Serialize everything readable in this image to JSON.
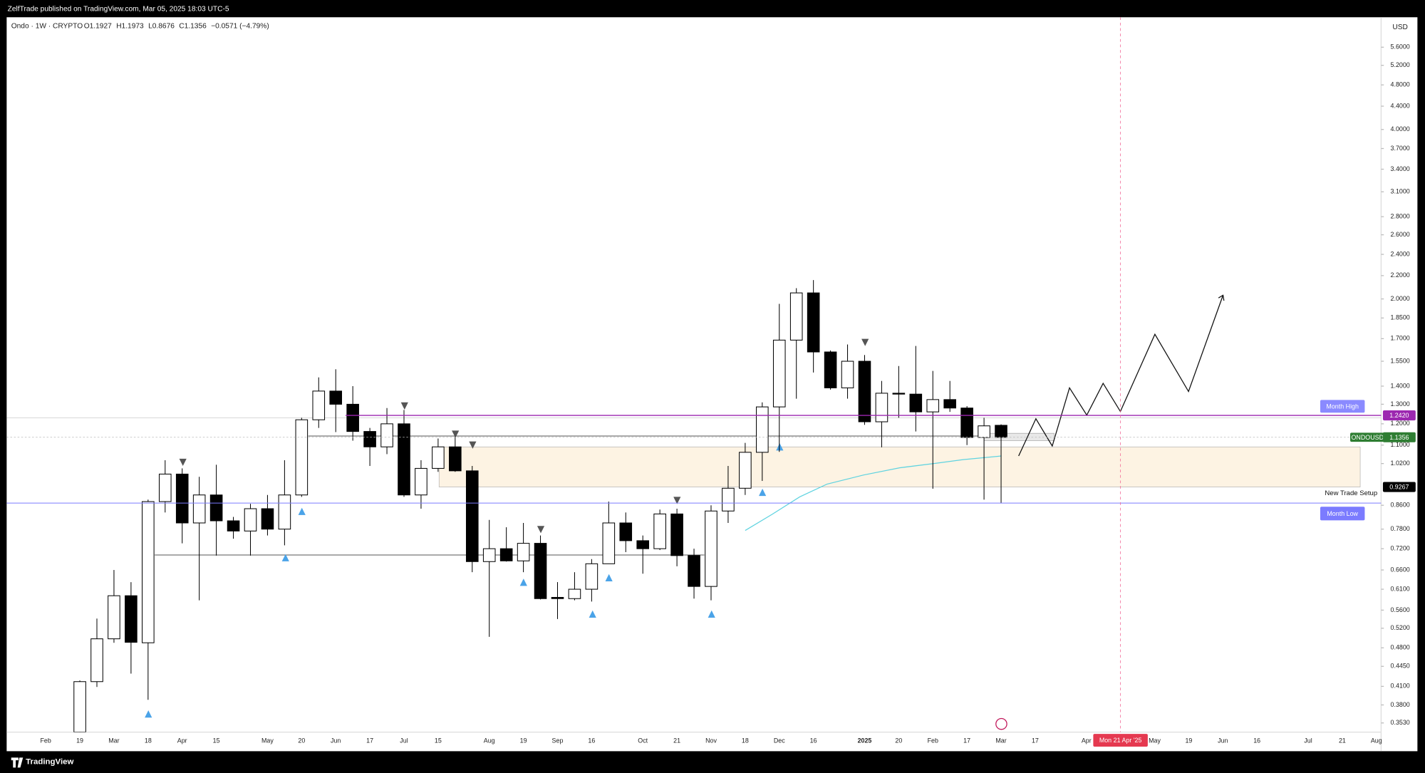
{
  "header": {
    "publisher": "ZelfTrade published on TradingView.com, Mar 05, 2025 18:03 UTC-5"
  },
  "footer": {
    "brand": "TradingView"
  },
  "chart_data": {
    "type": "candlestick",
    "symbol": "Ondo · 1W · CRYPTO",
    "ohlc_header": [
      "O1.1927",
      "H1.1973",
      "L0.8676",
      "C1.1356",
      "−0.0571 (−4.79%)"
    ],
    "currency": "USD",
    "crosshair_label": "Mon 21 Apr '25",
    "categories": [
      "Feb",
      null,
      "19",
      null,
      "Mar",
      null,
      "18",
      null,
      "Apr",
      null,
      "15",
      null,
      null,
      "May",
      null,
      "20",
      null,
      "Jun",
      null,
      "17",
      null,
      "Jul",
      null,
      "15",
      null,
      null,
      "Aug",
      null,
      "19",
      null,
      "Sep",
      null,
      "16",
      null,
      null,
      "Oct",
      null,
      "21",
      null,
      "Nov",
      null,
      "18",
      null,
      "Dec",
      null,
      "16",
      null,
      null,
      "2025",
      null,
      "20",
      null,
      "Feb",
      null,
      "17",
      null,
      "Mar",
      null,
      "17",
      null,
      null,
      "Apr",
      null,
      null,
      null,
      "May",
      null,
      "19",
      null,
      "Jun",
      null,
      "16",
      null,
      null,
      "Jul",
      null,
      "21",
      null,
      "Aug"
    ],
    "open": [
      null,
      null,
      0.34,
      0.418,
      0.498,
      0.594,
      0.49,
      0.873,
      0.977,
      0.8,
      0.897,
      0.807,
      0.774,
      0.848,
      0.78,
      0.897,
      1.22,
      1.372,
      1.3,
      1.163,
      1.092,
      1.2,
      0.897,
      1.0,
      1.092,
      0.99,
      0.683,
      0.72,
      0.685,
      0.736,
      0.59,
      0.587,
      0.61,
      0.677,
      0.8,
      0.744,
      0.72,
      0.83,
      0.7,
      0.617,
      0.84,
      0.922,
      1.068,
      1.286,
      1.69,
      2.05,
      1.61,
      1.39,
      1.55,
      1.21,
      1.36,
      1.355,
      1.26,
      1.325,
      1.28,
      1.135,
      1.1927,
      null,
      null,
      null,
      null,
      null,
      null,
      null,
      null,
      null,
      null,
      null,
      null,
      null,
      null,
      null,
      null,
      null,
      null,
      null,
      null,
      null,
      null
    ],
    "high": [
      null,
      null,
      0.42,
      0.541,
      0.66,
      0.628,
      0.88,
      1.034,
      1.0,
      0.966,
      1.015,
      0.82,
      0.865,
      0.897,
      1.034,
      1.23,
      1.451,
      1.5,
      1.4,
      1.18,
      1.28,
      1.27,
      1.034,
      1.13,
      1.14,
      1.01,
      0.81,
      0.786,
      0.8,
      0.76,
      0.628,
      0.654,
      0.69,
      0.873,
      0.835,
      0.76,
      0.845,
      0.848,
      0.72,
      0.86,
      1.01,
      1.11,
      1.31,
      1.96,
      2.09,
      2.16,
      1.62,
      1.66,
      1.59,
      1.43,
      1.52,
      1.65,
      1.49,
      1.43,
      1.29,
      1.23,
      1.1973,
      null,
      null,
      null,
      null,
      null,
      null,
      null,
      null,
      null,
      null,
      null,
      null,
      null,
      null,
      null,
      null,
      null,
      null,
      null,
      null,
      null,
      null
    ],
    "low": [
      null,
      null,
      0.33,
      0.409,
      0.49,
      0.432,
      0.388,
      0.835,
      0.736,
      0.583,
      0.7,
      0.75,
      0.7,
      0.76,
      0.73,
      0.89,
      1.18,
      1.16,
      1.12,
      1.01,
      1.06,
      0.89,
      0.848,
      0.986,
      0.986,
      0.654,
      0.502,
      0.683,
      0.654,
      0.585,
      0.54,
      0.583,
      0.58,
      0.677,
      0.71,
      0.65,
      0.716,
      0.67,
      0.587,
      0.583,
      0.8,
      0.897,
      0.95,
      1.07,
      1.33,
      1.48,
      1.38,
      1.33,
      1.195,
      1.09,
      1.23,
      1.163,
      0.92,
      1.26,
      1.1,
      0.88,
      0.8676,
      null,
      null,
      null,
      null,
      null,
      null,
      null,
      null,
      null,
      null,
      null,
      null,
      null,
      null,
      null,
      null,
      null,
      null,
      null,
      null,
      null,
      null
    ],
    "close": [
      null,
      null,
      0.418,
      0.498,
      0.594,
      0.491,
      0.873,
      0.977,
      0.8,
      0.897,
      0.807,
      0.774,
      0.848,
      0.78,
      0.897,
      1.22,
      1.372,
      1.3,
      1.163,
      1.092,
      1.2,
      0.897,
      1.0,
      1.092,
      0.99,
      0.683,
      0.72,
      0.685,
      0.736,
      0.587,
      0.587,
      0.61,
      0.677,
      0.8,
      0.744,
      0.72,
      0.83,
      0.7,
      0.617,
      0.84,
      0.922,
      1.068,
      1.286,
      1.69,
      2.05,
      1.61,
      1.39,
      1.55,
      1.21,
      1.36,
      1.355,
      1.26,
      1.325,
      1.28,
      1.135,
      1.19,
      1.1356,
      null,
      null,
      null,
      null,
      null,
      null,
      null,
      null,
      null,
      null,
      null,
      null,
      null,
      null,
      null,
      null,
      null,
      null,
      null,
      null,
      null,
      null
    ],
    "up_color": "#ffffff",
    "down_color": "#000000",
    "wick_color": "#000000",
    "log_scale": true,
    "ylim": [
      0.34,
      6.33
    ],
    "yticks": [
      {
        "value": 5.6,
        "label": "5.6000"
      },
      {
        "value": 5.2,
        "label": "5.2000"
      },
      {
        "value": 4.8,
        "label": "4.8000"
      },
      {
        "value": 4.4,
        "label": "4.4000"
      },
      {
        "value": 4.0,
        "label": "4.0000"
      },
      {
        "value": 3.7,
        "label": "3.7000"
      },
      {
        "value": 3.4,
        "label": "3.4000"
      },
      {
        "value": 3.1,
        "label": "3.1000"
      },
      {
        "value": 2.8,
        "label": "2.8000"
      },
      {
        "value": 2.6,
        "label": "2.6000"
      },
      {
        "value": 2.4,
        "label": "2.4000"
      },
      {
        "value": 2.2,
        "label": "2.2000"
      },
      {
        "value": 2.0,
        "label": "2.0000"
      },
      {
        "value": 1.85,
        "label": "1.8500"
      },
      {
        "value": 1.7,
        "label": "1.7000"
      },
      {
        "value": 1.55,
        "label": "1.5500"
      },
      {
        "value": 1.4,
        "label": "1.4000"
      },
      {
        "value": 1.3,
        "label": "1.3000"
      },
      {
        "value": 1.2,
        "label": "1.2000"
      },
      {
        "value": 1.1,
        "label": "1.1000"
      },
      {
        "value": 1.02,
        "label": "1.0200"
      },
      {
        "value": 0.86,
        "label": "0.8600"
      },
      {
        "value": 0.78,
        "label": "0.7800"
      },
      {
        "value": 0.72,
        "label": "0.7200"
      },
      {
        "value": 0.66,
        "label": "0.6600"
      },
      {
        "value": 0.61,
        "label": "0.6100"
      },
      {
        "value": 0.56,
        "label": "0.5600"
      },
      {
        "value": 0.52,
        "label": "0.5200"
      },
      {
        "value": 0.48,
        "label": "0.4800"
      },
      {
        "value": 0.445,
        "label": "0.4450"
      },
      {
        "value": 0.41,
        "label": "0.4100"
      },
      {
        "value": 0.38,
        "label": "0.3800"
      },
      {
        "value": 0.353,
        "label": "0.3530"
      }
    ],
    "zone": [
      0.9267,
      1.092
    ],
    "zone_color": "#fdf3e3",
    "levels": [
      {
        "name": "Month High",
        "value": 1.242,
        "label": "1.2420",
        "color": "#9c27b0"
      },
      {
        "name": "ONDOUSD",
        "value": 1.1356,
        "label": "1.1356",
        "color": "#2e7d32"
      },
      {
        "name": "New Trade Setup",
        "value": 0.9267,
        "label": "0.9267",
        "color": "#000000"
      },
      {
        "name": "Month Low",
        "value": 0.8676,
        "color": "#7b7bff"
      }
    ]
  }
}
